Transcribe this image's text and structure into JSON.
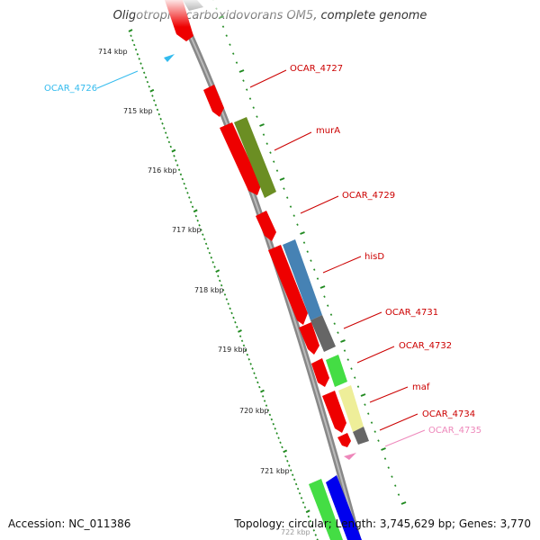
{
  "title": "Oligotropha carboxidovorans OM5, complete genome",
  "footer": {
    "accession": "Accession: NC_011386",
    "summary": "Topology: circular; Length: 3,745,629 bp; Genes: 3,770"
  },
  "kbp_ticks": [
    "714 kbp",
    "715 kbp",
    "716 kbp",
    "717 kbp",
    "718 kbp",
    "719 kbp",
    "720 kbp",
    "721 kbp",
    "722 kbp"
  ],
  "genes": [
    {
      "label": "OCAR_4727",
      "color": "#cc0000"
    },
    {
      "label": "murA",
      "color": "#cc0000"
    },
    {
      "label": "OCAR_4729",
      "color": "#cc0000"
    },
    {
      "label": "hisD",
      "color": "#cc0000"
    },
    {
      "label": "OCAR_4731",
      "color": "#cc0000"
    },
    {
      "label": "OCAR_4732",
      "color": "#cc0000"
    },
    {
      "label": "maf",
      "color": "#cc0000"
    },
    {
      "label": "OCAR_4734",
      "color": "#cc0000"
    },
    {
      "label": "OCAR_4735",
      "color": "#ee88bb"
    },
    {
      "label": "OCAR_4726",
      "color": "#33bbee"
    }
  ],
  "colors": {
    "backbone": "#888888",
    "cds_red": "#ee0000",
    "cog_olive": "#6b8e23",
    "cog_steelblue": "#4682b4",
    "cog_grey": "#666666",
    "cog_green": "#44dd44",
    "cog_khaki": "#eeee99",
    "cog_blue": "#0000ee",
    "tick_green": "#228b22",
    "trna_pink": "#ee88bb",
    "trna_cyan": "#33bbee"
  }
}
